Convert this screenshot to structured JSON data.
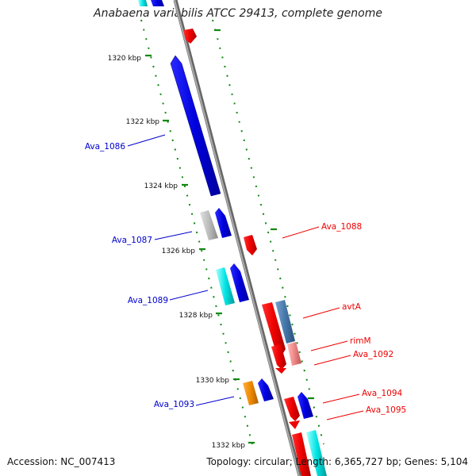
{
  "title": "Anabaena variabilis ATCC 29413, complete genome",
  "footer": {
    "accession": "Accession: NC_007413",
    "summary": "Topology: circular; Length: 6,365,727 bp; Genes: 5,104"
  },
  "kbp_ticks": [
    "1320 kbp",
    "1322 kbp",
    "1324 kbp",
    "1326 kbp",
    "1328 kbp",
    "1330 kbp",
    "1332 kbp"
  ],
  "genes_left": [
    "Ava_1086",
    "Ava_1087",
    "Ava_1089",
    "Ava_1093"
  ],
  "genes_right": [
    "Ava_1088",
    "avtA",
    "rimM",
    "Ava_1092",
    "Ava_1094",
    "Ava_1095"
  ],
  "colors": {
    "forward": "#0000dd",
    "reverse": "#ee0000",
    "backbone": "#888888",
    "ticks": "#118811",
    "cyan": "#00dddd",
    "grey": "#bbbbbb",
    "orange": "#ee8800",
    "steel": "#4477aa",
    "pink": "#ee8888"
  }
}
